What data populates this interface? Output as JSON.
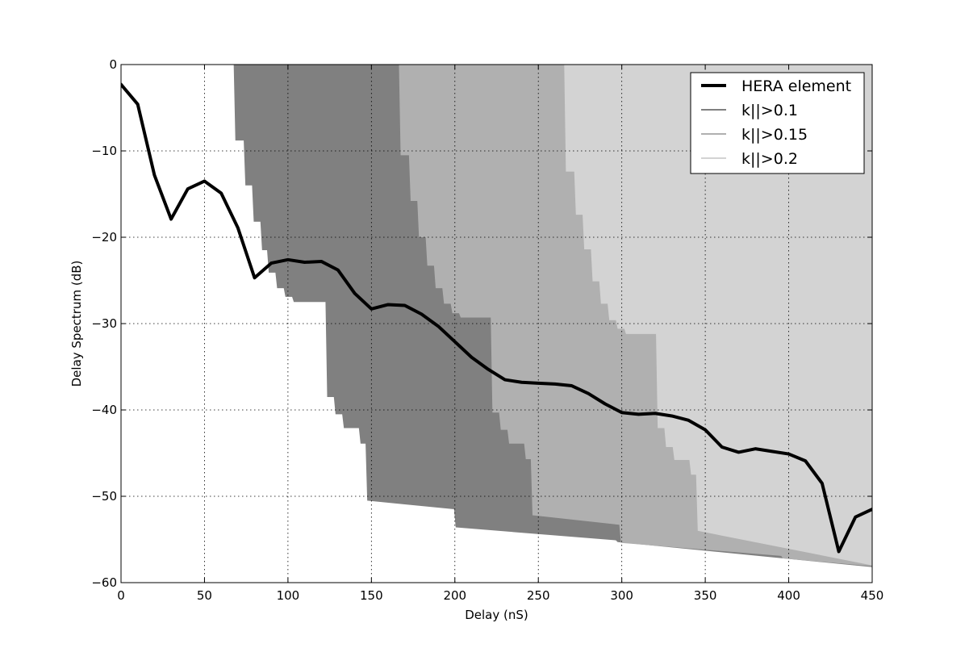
{
  "chart_data": {
    "type": "line",
    "title": "",
    "xlabel": "Delay (nS)",
    "ylabel": "Delay Spectrum (dB)",
    "xlim": [
      0,
      450
    ],
    "ylim": [
      -60,
      0
    ],
    "xticks": [
      "0",
      "50",
      "100",
      "150",
      "200",
      "250",
      "300",
      "350",
      "400",
      "450"
    ],
    "yticks": [
      "0",
      "−10",
      "−20",
      "−30",
      "−40",
      "−50",
      "−60"
    ],
    "xtick_values": [
      0,
      50,
      100,
      150,
      200,
      250,
      300,
      350,
      400,
      450
    ],
    "ytick_values": [
      0,
      -10,
      -20,
      -30,
      -40,
      -50,
      -60
    ],
    "grid": true,
    "legend_position": "top-right",
    "series": [
      {
        "name": "HERA element",
        "kind": "line",
        "color": "#000000",
        "x": [
          0,
          10,
          20,
          30,
          40,
          50,
          60,
          70,
          80,
          90,
          100,
          110,
          120,
          130,
          140,
          150,
          160,
          170,
          180,
          190,
          200,
          210,
          220,
          230,
          240,
          250,
          260,
          270,
          280,
          290,
          300,
          310,
          320,
          330,
          340,
          350,
          360,
          370,
          380,
          390,
          400,
          410,
          420,
          430,
          440,
          450
        ],
        "y": [
          -2.3,
          -4.6,
          -12.8,
          -17.9,
          -14.4,
          -13.5,
          -14.9,
          -18.9,
          -24.7,
          -23.0,
          -22.6,
          -22.9,
          -22.8,
          -23.8,
          -26.5,
          -28.3,
          -27.8,
          -27.9,
          -28.9,
          -30.3,
          -32.1,
          -33.9,
          -35.3,
          -36.5,
          -36.8,
          -36.9,
          -37.0,
          -37.2,
          -38.1,
          -39.3,
          -40.3,
          -40.5,
          -40.4,
          -40.7,
          -41.2,
          -42.3,
          -44.3,
          -44.9,
          -44.5,
          -44.8,
          -45.1,
          -45.9,
          -48.5,
          -56.4,
          -52.4,
          -51.5
        ]
      },
      {
        "name": "k||>0.1",
        "kind": "area",
        "color": "#808080",
        "boundary_x": [
          67.5,
          68.5,
          73.5,
          74.5,
          78.5,
          79.5,
          83.5,
          84.5,
          87.5,
          88.5,
          92.5,
          93.5,
          97.5,
          98.5,
          102.5,
          103.5,
          122.5,
          123.5,
          127.5,
          128.5,
          132.5,
          133.5,
          142.5,
          143.5,
          146.5,
          147.5,
          199.5,
          200.5,
          296.5,
          297.5,
          450
        ],
        "boundary_y": [
          0,
          -8.8,
          -8.8,
          -14.0,
          -14.0,
          -18.2,
          -18.2,
          -21.5,
          -21.5,
          -24.1,
          -24.1,
          -25.9,
          -25.9,
          -26.9,
          -26.9,
          -27.5,
          -27.5,
          -38.5,
          -38.5,
          -40.5,
          -40.5,
          -42.1,
          -42.1,
          -43.9,
          -43.9,
          -50.5,
          -51.5,
          -53.6,
          -55.1,
          -55.3,
          -58.2
        ]
      },
      {
        "name": "k||>0.15",
        "kind": "area",
        "color": "#b0b0b0",
        "boundary_x": [
          166.5,
          167.5,
          172.5,
          173.5,
          177.5,
          178.5,
          182.5,
          183.5,
          187.5,
          188.5,
          192.5,
          193.5,
          197.5,
          198.5,
          202.5,
          203.5,
          221.5,
          222.5,
          226.5,
          227.5,
          231.5,
          232.5,
          241.5,
          242.5,
          245.5,
          246.5,
          298.5,
          299.5,
          395.5,
          396.5,
          450
        ],
        "boundary_y": [
          0,
          -10.5,
          -10.5,
          -15.8,
          -15.8,
          -20.0,
          -20.0,
          -23.3,
          -23.3,
          -25.9,
          -25.9,
          -27.7,
          -27.7,
          -28.8,
          -28.8,
          -29.3,
          -29.3,
          -40.3,
          -40.3,
          -42.3,
          -42.3,
          -43.9,
          -43.9,
          -45.7,
          -45.7,
          -52.2,
          -53.3,
          -55.4,
          -56.9,
          -57.2,
          -58.1
        ]
      },
      {
        "name": "k||>0.2",
        "kind": "area",
        "color": "#d3d3d3",
        "boundary_x": [
          265.5,
          266.5,
          271.5,
          272.5,
          276.5,
          277.5,
          281.5,
          282.5,
          286.5,
          287.5,
          291.5,
          292.5,
          296.5,
          297.5,
          301.5,
          302.5,
          320.5,
          321.5,
          325.5,
          326.5,
          330.5,
          331.5,
          340.5,
          341.5,
          344.5,
          345.5,
          450
        ],
        "boundary_y": [
          0,
          -12.4,
          -12.4,
          -17.4,
          -17.4,
          -21.4,
          -21.4,
          -25.1,
          -25.1,
          -27.7,
          -27.7,
          -29.6,
          -29.6,
          -30.6,
          -30.6,
          -31.2,
          -31.2,
          -42.1,
          -42.1,
          -44.3,
          -44.3,
          -45.8,
          -45.8,
          -47.5,
          -47.5,
          -54.0,
          -58.0
        ]
      }
    ]
  }
}
